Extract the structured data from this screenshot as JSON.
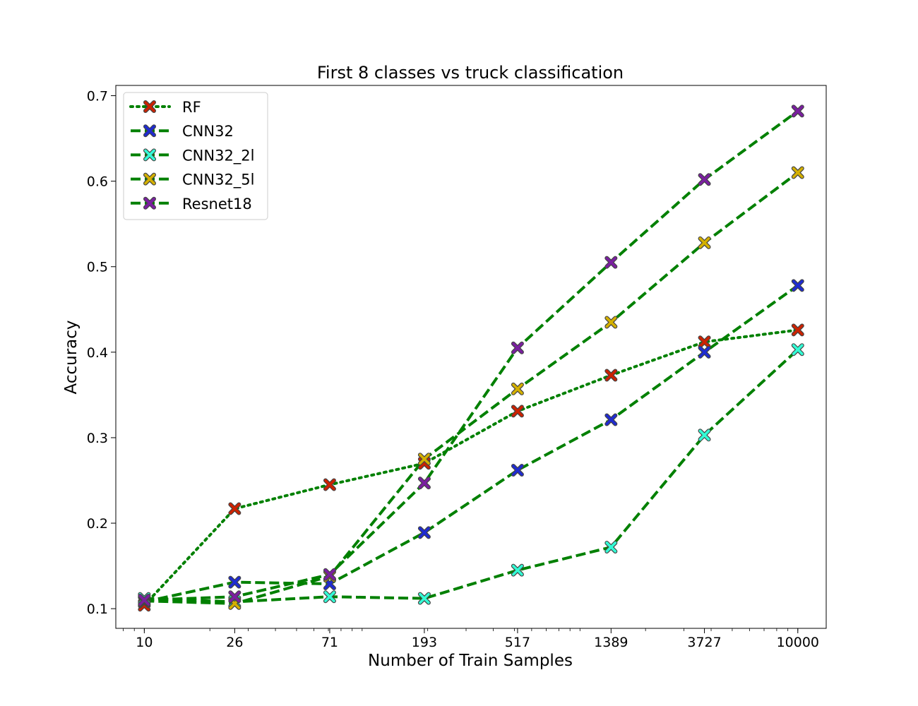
{
  "chart_data": {
    "type": "line",
    "title": "First 8 classes vs truck classification",
    "xlabel": "Number of Train Samples",
    "ylabel": "Accuracy",
    "xscale": "log",
    "x": [
      10,
      26,
      71,
      193,
      517,
      1389,
      3727,
      10000
    ],
    "x_tick_labels": [
      "10",
      "26",
      "71",
      "193",
      "517",
      "1389",
      "3727",
      "10000"
    ],
    "y_ticks": [
      0.1,
      0.2,
      0.3,
      0.4,
      0.5,
      0.6,
      0.7
    ],
    "y_tick_labels": [
      "0.1",
      "0.2",
      "0.3",
      "0.4",
      "0.5",
      "0.6",
      "0.7"
    ],
    "ylim": [
      0.077,
      0.712
    ],
    "xlim": [
      7.4,
      13500
    ],
    "grid": false,
    "legend_position": "top-left",
    "line_color": "#008000",
    "series": [
      {
        "name": "RF",
        "linestyle": "dotted",
        "marker_color": "#cc2200",
        "values": [
          0.104,
          0.217,
          0.245,
          0.27,
          0.331,
          0.373,
          0.412,
          0.426
        ]
      },
      {
        "name": "CNN32",
        "linestyle": "dashed",
        "marker_color": "#1f2bd1",
        "values": [
          0.108,
          0.131,
          0.129,
          0.189,
          0.262,
          0.321,
          0.4,
          0.478
        ]
      },
      {
        "name": "CNN32_2l",
        "linestyle": "dashed",
        "marker_color": "#33ffd6",
        "values": [
          0.112,
          0.108,
          0.114,
          0.112,
          0.145,
          0.172,
          0.303,
          0.403
        ]
      },
      {
        "name": "CNN32_5l",
        "linestyle": "dashed",
        "marker_color": "#d4b000",
        "values": [
          0.109,
          0.106,
          0.138,
          0.275,
          0.357,
          0.435,
          0.528,
          0.61
        ]
      },
      {
        "name": "Resnet18",
        "linestyle": "dashed",
        "marker_color": "#7a1fa0",
        "values": [
          0.11,
          0.114,
          0.14,
          0.247,
          0.405,
          0.505,
          0.602,
          0.682
        ]
      }
    ]
  }
}
